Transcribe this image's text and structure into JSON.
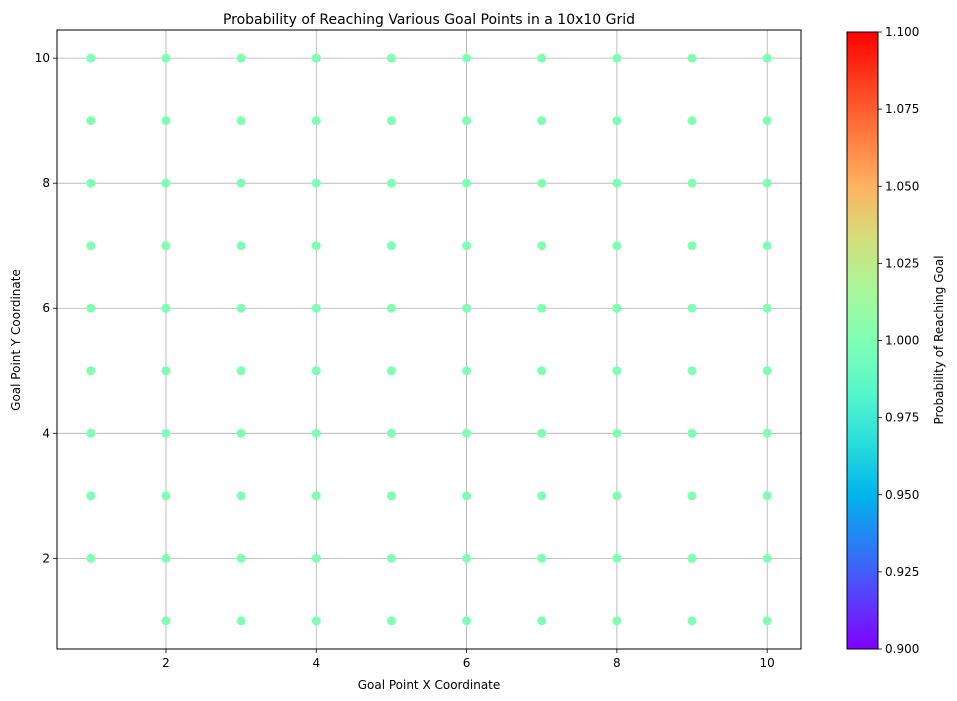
{
  "chart_data": {
    "type": "scatter",
    "title": "Probability of Reaching Various Goal Points in a 10x10 Grid",
    "xlabel": "Goal Point X Coordinate",
    "ylabel": "Goal Point Y Coordinate",
    "xlim": [
      0.55,
      10.45
    ],
    "ylim": [
      0.55,
      10.45
    ],
    "xticks": [
      2,
      4,
      6,
      8,
      10
    ],
    "yticks": [
      2,
      4,
      6,
      8,
      10
    ],
    "grid": true,
    "point_color": "#80ffb4",
    "points": [
      {
        "x": 1,
        "y": 2,
        "p": 1.0
      },
      {
        "x": 1,
        "y": 3,
        "p": 1.0
      },
      {
        "x": 1,
        "y": 4,
        "p": 1.0
      },
      {
        "x": 1,
        "y": 5,
        "p": 1.0
      },
      {
        "x": 1,
        "y": 6,
        "p": 1.0
      },
      {
        "x": 1,
        "y": 7,
        "p": 1.0
      },
      {
        "x": 1,
        "y": 8,
        "p": 1.0
      },
      {
        "x": 1,
        "y": 9,
        "p": 1.0
      },
      {
        "x": 1,
        "y": 10,
        "p": 1.0
      },
      {
        "x": 2,
        "y": 1,
        "p": 1.0
      },
      {
        "x": 2,
        "y": 2,
        "p": 1.0
      },
      {
        "x": 2,
        "y": 3,
        "p": 1.0
      },
      {
        "x": 2,
        "y": 4,
        "p": 1.0
      },
      {
        "x": 2,
        "y": 5,
        "p": 1.0
      },
      {
        "x": 2,
        "y": 6,
        "p": 1.0
      },
      {
        "x": 2,
        "y": 7,
        "p": 1.0
      },
      {
        "x": 2,
        "y": 8,
        "p": 1.0
      },
      {
        "x": 2,
        "y": 9,
        "p": 1.0
      },
      {
        "x": 2,
        "y": 10,
        "p": 1.0
      },
      {
        "x": 3,
        "y": 1,
        "p": 1.0
      },
      {
        "x": 3,
        "y": 2,
        "p": 1.0
      },
      {
        "x": 3,
        "y": 3,
        "p": 1.0
      },
      {
        "x": 3,
        "y": 4,
        "p": 1.0
      },
      {
        "x": 3,
        "y": 5,
        "p": 1.0
      },
      {
        "x": 3,
        "y": 6,
        "p": 1.0
      },
      {
        "x": 3,
        "y": 7,
        "p": 1.0
      },
      {
        "x": 3,
        "y": 8,
        "p": 1.0
      },
      {
        "x": 3,
        "y": 9,
        "p": 1.0
      },
      {
        "x": 3,
        "y": 10,
        "p": 1.0
      },
      {
        "x": 4,
        "y": 1,
        "p": 1.0
      },
      {
        "x": 4,
        "y": 2,
        "p": 1.0
      },
      {
        "x": 4,
        "y": 3,
        "p": 1.0
      },
      {
        "x": 4,
        "y": 4,
        "p": 1.0
      },
      {
        "x": 4,
        "y": 5,
        "p": 1.0
      },
      {
        "x": 4,
        "y": 6,
        "p": 1.0
      },
      {
        "x": 4,
        "y": 7,
        "p": 1.0
      },
      {
        "x": 4,
        "y": 8,
        "p": 1.0
      },
      {
        "x": 4,
        "y": 9,
        "p": 1.0
      },
      {
        "x": 4,
        "y": 10,
        "p": 1.0
      },
      {
        "x": 5,
        "y": 1,
        "p": 1.0
      },
      {
        "x": 5,
        "y": 2,
        "p": 1.0
      },
      {
        "x": 5,
        "y": 3,
        "p": 1.0
      },
      {
        "x": 5,
        "y": 4,
        "p": 1.0
      },
      {
        "x": 5,
        "y": 5,
        "p": 1.0
      },
      {
        "x": 5,
        "y": 6,
        "p": 1.0
      },
      {
        "x": 5,
        "y": 7,
        "p": 1.0
      },
      {
        "x": 5,
        "y": 8,
        "p": 1.0
      },
      {
        "x": 5,
        "y": 9,
        "p": 1.0
      },
      {
        "x": 5,
        "y": 10,
        "p": 1.0
      },
      {
        "x": 6,
        "y": 1,
        "p": 1.0
      },
      {
        "x": 6,
        "y": 2,
        "p": 1.0
      },
      {
        "x": 6,
        "y": 3,
        "p": 1.0
      },
      {
        "x": 6,
        "y": 4,
        "p": 1.0
      },
      {
        "x": 6,
        "y": 5,
        "p": 1.0
      },
      {
        "x": 6,
        "y": 6,
        "p": 1.0
      },
      {
        "x": 6,
        "y": 7,
        "p": 1.0
      },
      {
        "x": 6,
        "y": 8,
        "p": 1.0
      },
      {
        "x": 6,
        "y": 9,
        "p": 1.0
      },
      {
        "x": 6,
        "y": 10,
        "p": 1.0
      },
      {
        "x": 7,
        "y": 1,
        "p": 1.0
      },
      {
        "x": 7,
        "y": 2,
        "p": 1.0
      },
      {
        "x": 7,
        "y": 3,
        "p": 1.0
      },
      {
        "x": 7,
        "y": 4,
        "p": 1.0
      },
      {
        "x": 7,
        "y": 5,
        "p": 1.0
      },
      {
        "x": 7,
        "y": 6,
        "p": 1.0
      },
      {
        "x": 7,
        "y": 7,
        "p": 1.0
      },
      {
        "x": 7,
        "y": 8,
        "p": 1.0
      },
      {
        "x": 7,
        "y": 9,
        "p": 1.0
      },
      {
        "x": 7,
        "y": 10,
        "p": 1.0
      },
      {
        "x": 8,
        "y": 1,
        "p": 1.0
      },
      {
        "x": 8,
        "y": 2,
        "p": 1.0
      },
      {
        "x": 8,
        "y": 3,
        "p": 1.0
      },
      {
        "x": 8,
        "y": 4,
        "p": 1.0
      },
      {
        "x": 8,
        "y": 5,
        "p": 1.0
      },
      {
        "x": 8,
        "y": 6,
        "p": 1.0
      },
      {
        "x": 8,
        "y": 7,
        "p": 1.0
      },
      {
        "x": 8,
        "y": 8,
        "p": 1.0
      },
      {
        "x": 8,
        "y": 9,
        "p": 1.0
      },
      {
        "x": 8,
        "y": 10,
        "p": 1.0
      },
      {
        "x": 9,
        "y": 1,
        "p": 1.0
      },
      {
        "x": 9,
        "y": 2,
        "p": 1.0
      },
      {
        "x": 9,
        "y": 3,
        "p": 1.0
      },
      {
        "x": 9,
        "y": 4,
        "p": 1.0
      },
      {
        "x": 9,
        "y": 5,
        "p": 1.0
      },
      {
        "x": 9,
        "y": 6,
        "p": 1.0
      },
      {
        "x": 9,
        "y": 7,
        "p": 1.0
      },
      {
        "x": 9,
        "y": 8,
        "p": 1.0
      },
      {
        "x": 9,
        "y": 9,
        "p": 1.0
      },
      {
        "x": 9,
        "y": 10,
        "p": 1.0
      },
      {
        "x": 10,
        "y": 1,
        "p": 1.0
      },
      {
        "x": 10,
        "y": 2,
        "p": 1.0
      },
      {
        "x": 10,
        "y": 3,
        "p": 1.0
      },
      {
        "x": 10,
        "y": 4,
        "p": 1.0
      },
      {
        "x": 10,
        "y": 5,
        "p": 1.0
      },
      {
        "x": 10,
        "y": 6,
        "p": 1.0
      },
      {
        "x": 10,
        "y": 7,
        "p": 1.0
      },
      {
        "x": 10,
        "y": 8,
        "p": 1.0
      },
      {
        "x": 10,
        "y": 9,
        "p": 1.0
      },
      {
        "x": 10,
        "y": 10,
        "p": 1.0
      }
    ],
    "colorbar": {
      "label": "Probability of Reaching Goal",
      "colormap": "rainbow",
      "range": [
        0.9,
        1.1
      ],
      "ticks": [
        "0.900",
        "0.925",
        "0.950",
        "0.975",
        "1.000",
        "1.025",
        "1.050",
        "1.075",
        "1.100"
      ],
      "gradient_colors": [
        "#8000ff",
        "#5a3ffd",
        "#2a7cf6",
        "#00b5eb",
        "#2adddd",
        "#56f7cb",
        "#80ffb4",
        "#aaf799",
        "#d4dd7a",
        "#ffb360",
        "#ff7a3e",
        "#ff3f20",
        "#ff0000"
      ]
    }
  }
}
